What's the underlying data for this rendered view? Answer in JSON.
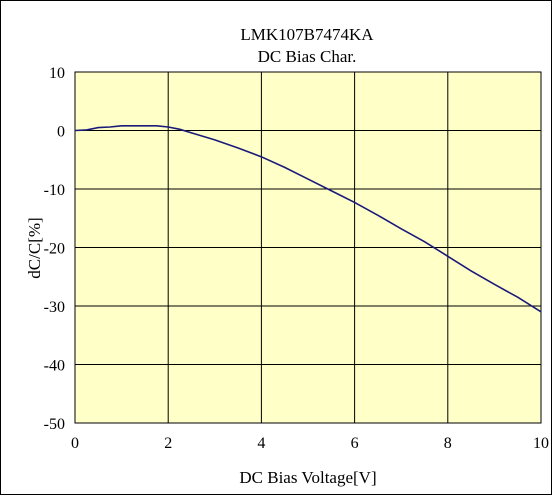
{
  "chart_data": {
    "type": "line",
    "title": [
      "LMK107B7474KA",
      "DC Bias Char."
    ],
    "xlabel": "DC Bias Voltage[V]",
    "ylabel": "dC/C[%]",
    "xlim": [
      0,
      10
    ],
    "ylim": [
      -50,
      10
    ],
    "x_ticks": [
      0,
      2,
      4,
      6,
      8,
      10
    ],
    "y_ticks": [
      10,
      0,
      -10,
      -20,
      -30,
      -40,
      -50
    ],
    "grid": true,
    "colors": {
      "plot_bg": "#ffffc8",
      "line": "#1a1a7a",
      "grid": "#000000"
    },
    "series": [
      {
        "x": [
          0,
          0.25,
          0.5,
          0.75,
          1.0,
          1.25,
          1.5,
          1.75,
          2.0,
          2.25,
          2.5,
          3.0,
          3.5,
          4.0,
          4.5,
          5.0,
          5.5,
          6.0,
          6.5,
          7.0,
          7.5,
          8.0,
          8.5,
          9.0,
          9.5,
          10.0
        ],
        "y": [
          0,
          0.1,
          0.5,
          0.6,
          0.8,
          0.8,
          0.8,
          0.8,
          0.6,
          0.2,
          -0.4,
          -1.6,
          -3.0,
          -4.5,
          -6.3,
          -8.3,
          -10.3,
          -12.3,
          -14.5,
          -16.8,
          -19.0,
          -21.5,
          -24.0,
          -26.3,
          -28.5,
          -31.0
        ]
      }
    ]
  }
}
